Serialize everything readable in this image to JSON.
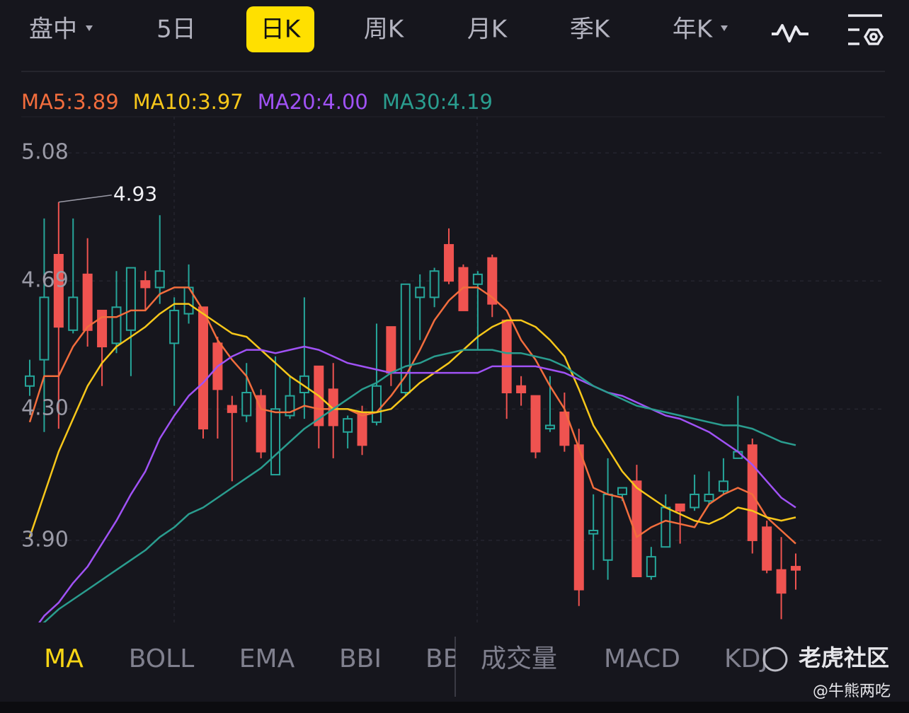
{
  "tabs": [
    "盘中",
    "5日",
    "日K",
    "周K",
    "月K",
    "季K",
    "年K"
  ],
  "chart_data": {
    "type": "candlestick",
    "ylim": [
      3.65,
      5.19
    ],
    "yticks": [
      5.08,
      4.69,
      {
        "value": 4.3,
        "label": "4.30"
      },
      {
        "value": 3.9,
        "label": "3.90"
      }
    ],
    "grid": true,
    "up_color": "#ef5350",
    "down_color": "#26a69a",
    "max_label": 4.93,
    "open": [
      4.4,
      4.64,
      4.55,
      4.64,
      4.54,
      4.49,
      4.61,
      4.73,
      4.67,
      4.72,
      4.6,
      4.67,
      4.24,
      4.36,
      4.29,
      4.35,
      4.17,
      4.3,
      4.34,
      4.4,
      4.25,
      4.25,
      4.27,
      4.19,
      4.37,
      4.41,
      4.68,
      4.67,
      4.72,
      4.69,
      4.6,
      4.71,
      4.62,
      4.35,
      4.35,
      4.17,
      4.25,
      4.19,
      3.75,
      3.93,
      4.04,
      4.06,
      3.79,
      3.85,
      4.0,
      3.99,
      4.04,
      4.04,
      4.08,
      4.17,
      3.9,
      3.81,
      3.74,
      3.81
    ],
    "high": [
      4.45,
      4.88,
      4.93,
      4.88,
      4.82,
      4.6,
      4.72,
      4.73,
      4.72,
      4.89,
      4.64,
      4.74,
      4.61,
      4.52,
      4.34,
      4.44,
      4.36,
      4.46,
      4.4,
      4.64,
      4.43,
      4.44,
      4.28,
      4.31,
      4.56,
      4.55,
      4.68,
      4.71,
      4.73,
      4.85,
      4.74,
      4.72,
      4.77,
      4.57,
      4.4,
      4.34,
      4.4,
      4.35,
      4.24,
      4.04,
      4.15,
      4.06,
      4.13,
      3.88,
      4.04,
      4.01,
      4.1,
      4.11,
      4.15,
      4.34,
      4.21,
      3.96,
      3.91,
      3.86
    ],
    "low": [
      4.34,
      4.23,
      4.24,
      4.53,
      4.49,
      4.37,
      4.47,
      4.4,
      4.6,
      4.62,
      4.31,
      4.56,
      4.21,
      4.21,
      4.08,
      4.26,
      4.15,
      4.1,
      4.27,
      4.27,
      4.18,
      4.15,
      4.18,
      4.16,
      4.25,
      4.37,
      4.34,
      4.51,
      4.61,
      4.68,
      4.6,
      4.48,
      4.58,
      4.27,
      4.31,
      4.15,
      4.23,
      4.17,
      3.7,
      3.81,
      3.78,
      4.02,
      3.79,
      3.78,
      3.88,
      3.89,
      3.99,
      4.01,
      4.04,
      4.15,
      3.86,
      3.8,
      3.66,
      3.75
    ],
    "close": [
      4.37,
      4.45,
      4.77,
      4.54,
      4.71,
      4.6,
      4.5,
      4.54,
      4.69,
      4.67,
      4.5,
      4.59,
      4.61,
      4.5,
      4.31,
      4.28,
      4.34,
      4.1,
      4.28,
      4.35,
      4.43,
      4.36,
      4.23,
      4.29,
      4.26,
      4.55,
      4.35,
      4.64,
      4.64,
      4.8,
      4.73,
      4.68,
      4.76,
      4.57,
      4.37,
      4.34,
      4.24,
      4.29,
      4.19,
      3.92,
      3.84,
      4.04,
      4.08,
      3.79,
      3.88,
      4.01,
      4.0,
      4.02,
      4.05,
      4.15,
      4.19,
      3.94,
      3.81,
      3.82
    ],
    "series": [
      {
        "name": "MA5:3.89",
        "color": "#f26d3d",
        "values": [
          4.26,
          4.4,
          4.4,
          4.49,
          4.55,
          4.58,
          4.58,
          4.6,
          4.6,
          4.65,
          4.67,
          4.67,
          4.6,
          4.51,
          4.45,
          4.4,
          4.3,
          4.29,
          4.29,
          4.31,
          4.3,
          4.3,
          4.3,
          4.28,
          4.29,
          4.34,
          4.4,
          4.48,
          4.57,
          4.63,
          4.67,
          4.67,
          4.64,
          4.6,
          4.51,
          4.45,
          4.37,
          4.3,
          4.18,
          4.06,
          4.04,
          4.03,
          3.91,
          3.94,
          3.96,
          3.95,
          3.94,
          4.01,
          4.04,
          4.06,
          4.04,
          3.97,
          3.93,
          3.89
        ]
      },
      {
        "name": "MA10:3.97",
        "color": "#f7c71a",
        "values": [
          3.91,
          4.04,
          4.17,
          4.27,
          4.37,
          4.44,
          4.49,
          4.52,
          4.55,
          4.59,
          4.62,
          4.62,
          4.59,
          4.56,
          4.53,
          4.52,
          4.48,
          4.44,
          4.4,
          4.37,
          4.34,
          4.3,
          4.3,
          4.29,
          4.29,
          4.3,
          4.34,
          4.38,
          4.41,
          4.44,
          4.48,
          4.52,
          4.55,
          4.57,
          4.57,
          4.55,
          4.51,
          4.46,
          4.36,
          4.25,
          4.18,
          4.11,
          4.06,
          4.03,
          4.0,
          3.98,
          3.96,
          3.95,
          3.97,
          4.0,
          3.99,
          3.97,
          3.96,
          3.97
        ]
      },
      {
        "name": "MA20:4.00",
        "color": "#a052f5",
        "values": [
          3.61,
          3.67,
          3.71,
          3.77,
          3.82,
          3.89,
          3.96,
          4.04,
          4.11,
          4.21,
          4.28,
          4.34,
          4.38,
          4.43,
          4.46,
          4.48,
          4.48,
          4.47,
          4.48,
          4.49,
          4.48,
          4.46,
          4.44,
          4.43,
          4.42,
          4.41,
          4.41,
          4.41,
          4.41,
          4.41,
          4.41,
          4.41,
          4.43,
          4.43,
          4.43,
          4.43,
          4.42,
          4.41,
          4.39,
          4.37,
          4.35,
          4.34,
          4.32,
          4.3,
          4.28,
          4.27,
          4.25,
          4.23,
          4.2,
          4.17,
          4.13,
          4.08,
          4.03,
          4.0
        ]
      },
      {
        "name": "MA30:4.19",
        "color": "#2a9d8f",
        "values": [
          3.62,
          3.65,
          3.69,
          3.72,
          3.75,
          3.78,
          3.81,
          3.84,
          3.87,
          3.91,
          3.94,
          3.98,
          4.0,
          4.03,
          4.06,
          4.09,
          4.12,
          4.16,
          4.2,
          4.24,
          4.27,
          4.3,
          4.33,
          4.36,
          4.38,
          4.41,
          4.43,
          4.44,
          4.46,
          4.47,
          4.48,
          4.48,
          4.48,
          4.47,
          4.47,
          4.46,
          4.45,
          4.43,
          4.4,
          4.37,
          4.35,
          4.33,
          4.31,
          4.3,
          4.29,
          4.28,
          4.27,
          4.26,
          4.25,
          4.25,
          4.24,
          4.22,
          4.2,
          4.19
        ]
      }
    ]
  },
  "indicators": [
    "MA",
    "BOLL",
    "EMA",
    "BBI",
    "BB",
    "成交量",
    "MACD",
    "KDJ"
  ],
  "watermark": {
    "brand": "老虎社区",
    "user": "@牛熊两吃"
  }
}
